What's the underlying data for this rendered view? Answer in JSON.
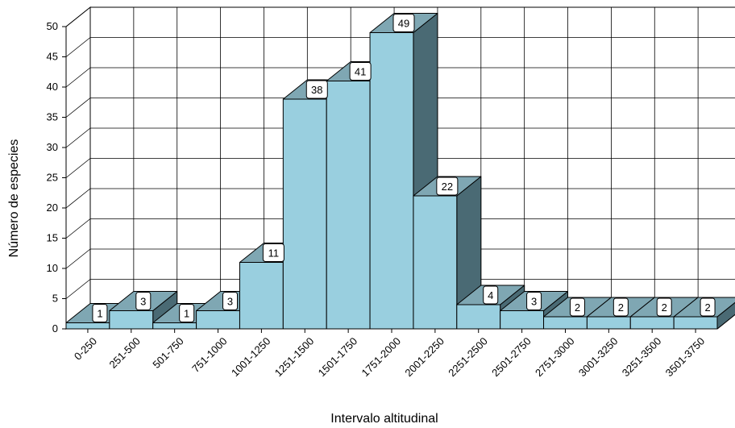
{
  "chart_data": {
    "type": "bar",
    "title": "",
    "xlabel": "Intervalo altitudinal",
    "ylabel": "Número de especies",
    "ylim": [
      0,
      50
    ],
    "yticks": [
      0,
      5,
      10,
      15,
      20,
      25,
      30,
      35,
      40,
      45,
      50
    ],
    "grid": true,
    "style": "3d",
    "categories": [
      "0-250",
      "251-500",
      "501-750",
      "751-1000",
      "1001-1250",
      "1251-1500",
      "1501-1750",
      "1751-2000",
      "2001-2250",
      "2251-2500",
      "2501-2750",
      "2751-3000",
      "3001-3250",
      "3251-3500",
      "3501-3750"
    ],
    "values": [
      1,
      3,
      1,
      3,
      11,
      38,
      41,
      49,
      22,
      4,
      3,
      2,
      2,
      2,
      2
    ],
    "data_labels": [
      "1",
      "3",
      "1",
      "3",
      "11",
      "38",
      "41",
      "49",
      "22",
      "4",
      "3",
      "2",
      "2",
      "2",
      "2"
    ]
  },
  "colors": {
    "bar_front": "#99cfdf",
    "bar_top": "#7fa7b3",
    "bar_side": "#4a6a74",
    "grid": "#000000",
    "label_box": "#ffffff"
  }
}
